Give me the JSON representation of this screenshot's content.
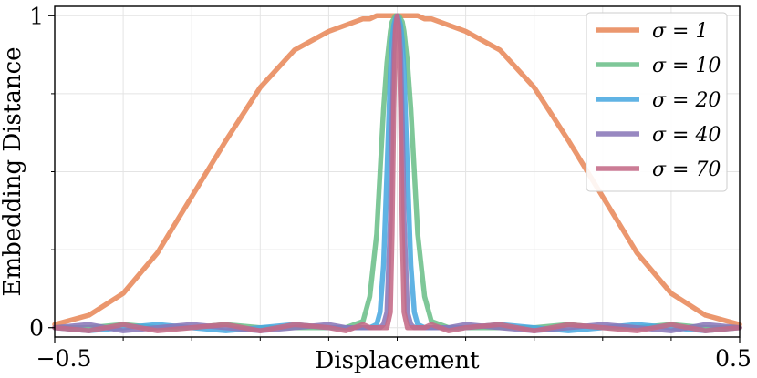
{
  "chart_data": {
    "type": "line",
    "xlabel": "Displacement",
    "ylabel": "Embedding Distance",
    "xlim": [
      -0.5,
      0.5
    ],
    "ylim": [
      -0.03,
      1.03
    ],
    "x_ticks": [
      -0.5,
      0.5
    ],
    "x_tick_labels": [
      "−0.5",
      "0.5"
    ],
    "y_ticks": [
      0,
      1
    ],
    "y_tick_labels": [
      "0",
      "1"
    ],
    "minor_x_ticks": [
      -0.4,
      -0.3,
      -0.2,
      -0.1,
      0.0,
      0.1,
      0.2,
      0.3,
      0.4
    ],
    "minor_y_ticks": [
      0.25,
      0.5,
      0.75
    ],
    "grid": true,
    "legend_position": "top-right",
    "x": [
      -0.5,
      -0.45,
      -0.4,
      -0.35,
      -0.3,
      -0.25,
      -0.2,
      -0.15,
      -0.1,
      -0.075,
      -0.05,
      -0.04,
      -0.03,
      -0.025,
      -0.02,
      -0.015,
      -0.01,
      -0.0075,
      -0.005,
      -0.0025,
      0.0,
      0.0025,
      0.005,
      0.0075,
      0.01,
      0.015,
      0.02,
      0.025,
      0.03,
      0.04,
      0.05,
      0.075,
      0.1,
      0.15,
      0.2,
      0.25,
      0.3,
      0.35,
      0.4,
      0.45,
      0.5
    ],
    "series": [
      {
        "name": "σ = 1",
        "color": "#e8895a",
        "values": [
          0.01,
          0.04,
          0.11,
          0.24,
          0.42,
          0.6,
          0.77,
          0.89,
          0.95,
          0.97,
          0.99,
          0.99,
          1.0,
          1.0,
          1.0,
          1.0,
          1.0,
          1.0,
          1.0,
          1.0,
          1.0,
          1.0,
          1.0,
          1.0,
          1.0,
          1.0,
          1.0,
          1.0,
          1.0,
          0.99,
          0.99,
          0.97,
          0.95,
          0.89,
          0.77,
          0.6,
          0.42,
          0.24,
          0.11,
          0.04,
          0.01
        ]
      },
      {
        "name": "σ = 10",
        "color": "#6cbf8a",
        "values": [
          0.0,
          0.0,
          0.01,
          0.0,
          0.0,
          0.01,
          0.0,
          0.0,
          0.0,
          0.0,
          0.02,
          0.1,
          0.3,
          0.5,
          0.7,
          0.85,
          0.95,
          0.98,
          0.99,
          1.0,
          1.0,
          1.0,
          0.99,
          0.98,
          0.95,
          0.85,
          0.7,
          0.5,
          0.3,
          0.1,
          0.02,
          0.0,
          0.0,
          0.0,
          0.0,
          0.01,
          0.0,
          0.0,
          0.01,
          0.0,
          0.0
        ]
      },
      {
        "name": "σ = 20",
        "color": "#4aa8e0",
        "values": [
          0.0,
          -0.01,
          0.0,
          0.01,
          0.0,
          -0.01,
          0.0,
          0.01,
          0.0,
          0.0,
          0.0,
          0.0,
          0.01,
          0.05,
          0.2,
          0.5,
          0.82,
          0.92,
          0.97,
          0.99,
          1.0,
          0.99,
          0.97,
          0.92,
          0.82,
          0.5,
          0.2,
          0.05,
          0.01,
          0.0,
          0.0,
          0.0,
          0.0,
          0.01,
          0.0,
          -0.01,
          0.0,
          0.01,
          0.0,
          -0.01,
          0.0
        ]
      },
      {
        "name": "σ = 40",
        "color": "#8a78b8",
        "values": [
          0.0,
          0.01,
          -0.01,
          0.0,
          0.01,
          0.0,
          -0.01,
          0.0,
          0.01,
          0.0,
          0.0,
          0.0,
          0.0,
          0.0,
          0.01,
          0.05,
          0.35,
          0.65,
          0.88,
          0.97,
          1.0,
          0.97,
          0.88,
          0.65,
          0.35,
          0.05,
          0.01,
          0.0,
          0.0,
          0.0,
          0.0,
          0.0,
          0.01,
          0.0,
          -0.01,
          0.0,
          0.01,
          0.0,
          -0.01,
          0.01,
          0.0
        ]
      },
      {
        "name": "σ = 70",
        "color": "#c46a86",
        "values": [
          0.0,
          -0.01,
          0.01,
          -0.01,
          0.0,
          0.01,
          -0.01,
          0.01,
          0.0,
          -0.01,
          0.01,
          0.0,
          0.0,
          0.0,
          0.0,
          0.0,
          0.05,
          0.3,
          0.7,
          0.95,
          1.0,
          0.95,
          0.7,
          0.3,
          0.05,
          0.0,
          0.0,
          0.0,
          0.0,
          0.0,
          0.01,
          -0.01,
          0.0,
          0.01,
          -0.01,
          0.01,
          0.0,
          -0.01,
          0.01,
          -0.01,
          0.0
        ]
      }
    ]
  }
}
